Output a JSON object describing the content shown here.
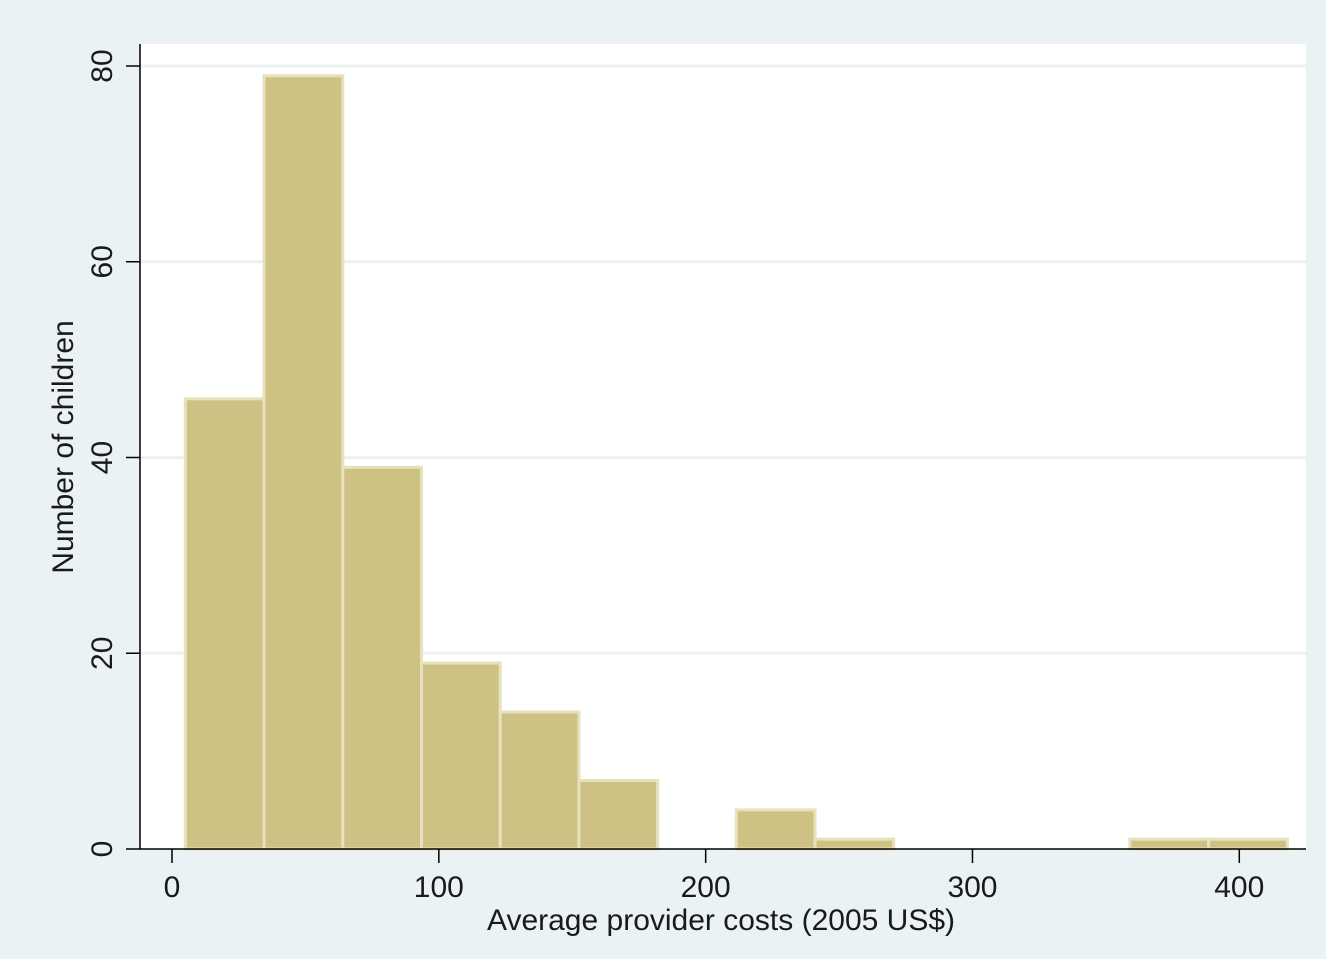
{
  "chart_data": {
    "type": "bar",
    "subtype": "histogram",
    "title": "",
    "xlabel": "Average provider costs (2005 US$)",
    "ylabel": "Number of children",
    "xlim": [
      -12,
      425
    ],
    "ylim": [
      0,
      80
    ],
    "xticks": [
      0,
      100,
      200,
      300,
      400
    ],
    "yticks": [
      0,
      20,
      40,
      60,
      80
    ],
    "bins": [
      {
        "x0": 5,
        "x1": 34.5,
        "value": 46
      },
      {
        "x0": 34.5,
        "x1": 64,
        "value": 79
      },
      {
        "x0": 64,
        "x1": 93.5,
        "value": 39
      },
      {
        "x0": 93.5,
        "x1": 123,
        "value": 19
      },
      {
        "x0": 123,
        "x1": 152.5,
        "value": 14
      },
      {
        "x0": 152.5,
        "x1": 182,
        "value": 7
      },
      {
        "x0": 182,
        "x1": 211.5,
        "value": 0
      },
      {
        "x0": 211.5,
        "x1": 241,
        "value": 4
      },
      {
        "x0": 241,
        "x1": 270.5,
        "value": 1
      },
      {
        "x0": 270.5,
        "x1": 300,
        "value": 0
      },
      {
        "x0": 300,
        "x1": 329.5,
        "value": 0
      },
      {
        "x0": 329.5,
        "x1": 359,
        "value": 0
      },
      {
        "x0": 359,
        "x1": 388.5,
        "value": 1
      },
      {
        "x0": 388.5,
        "x1": 418,
        "value": 1
      }
    ],
    "grid": true,
    "colors": {
      "bar_fill": "#cdc283",
      "bar_edge": "#e6e2bd",
      "plot_bg": "#ffffff",
      "outer_bg": "#eaf2f3",
      "grid": "#eaf2f3",
      "axis": "#000000"
    }
  }
}
